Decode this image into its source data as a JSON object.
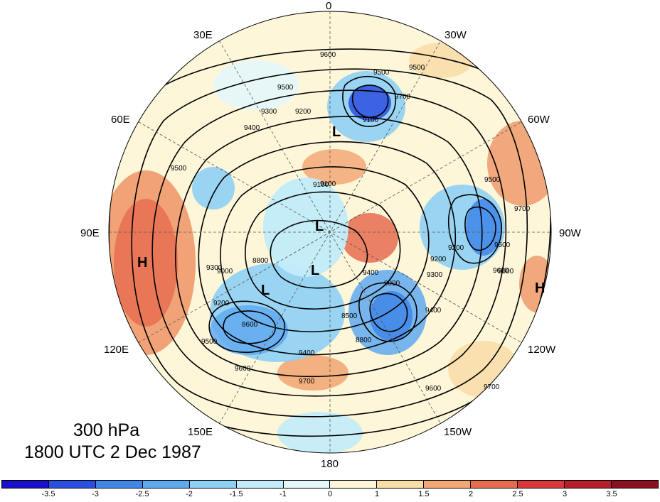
{
  "title": {
    "level": "300 hPa",
    "time": "1800 UTC 2 Dec 1987"
  },
  "longitude_labels": [
    "0",
    "30W",
    "60W",
    "90W",
    "120W",
    "150W",
    "180",
    "150E",
    "120E",
    "90E",
    "60E",
    "30E"
  ],
  "pressure_centers": {
    "low": "L",
    "high": "H"
  },
  "contour_labels": [
    "9500",
    "9600",
    "9500",
    "9500",
    "9400",
    "9300",
    "9200",
    "9100",
    "9700",
    "9500",
    "9700",
    "9600",
    "9500",
    "9200",
    "9100",
    "9000",
    "9400",
    "9300",
    "9000",
    "8800",
    "8500",
    "8600",
    "9200",
    "9400",
    "9400",
    "9500",
    "9600",
    "9600",
    "9700",
    "9700",
    "9600",
    "9500",
    "9300",
    "8800",
    "9100",
    "9200"
  ],
  "colorbar": {
    "labels": [
      "-3.5",
      "-3",
      "-2.5",
      "-2",
      "-1.5",
      "-1",
      "0",
      "1",
      "1.5",
      "2",
      "2.5",
      "3",
      "3.5"
    ],
    "colors": [
      "#1b10c9",
      "#2a4fe0",
      "#3f86e8",
      "#5fa9ef",
      "#8fd0f5",
      "#c2ecfa",
      "#e4f7fb",
      "#fdf6d9",
      "#f9deaa",
      "#f2a875",
      "#e76c4f",
      "#d9383a",
      "#b81d2a",
      "#8a1020"
    ]
  },
  "colors": {
    "ocean_background": "#fdf6d9",
    "coastline": "#777777",
    "contour": "#000000"
  }
}
